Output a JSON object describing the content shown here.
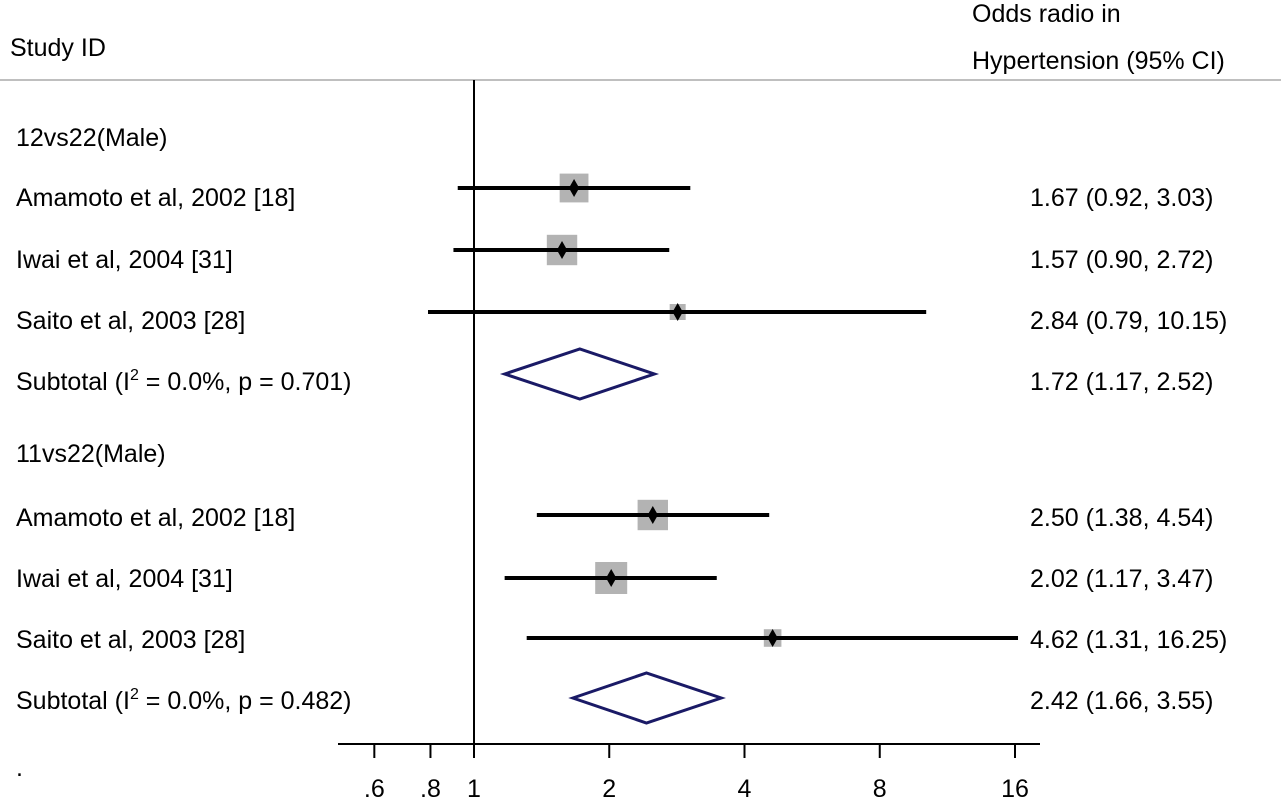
{
  "header": {
    "left_title": "Study ID",
    "right_title_line1": "Odds radio in",
    "right_title_line2": "Hypertension (95% CI)"
  },
  "footnote": ".",
  "chart_data": {
    "type": "forest",
    "x_scale": "log",
    "xlim": [
      0.5,
      18
    ],
    "x_ticks": [
      0.6,
      0.8,
      1,
      2,
      4,
      8,
      16
    ],
    "x_tick_labels": [
      ".6",
      ".8",
      "1",
      "2",
      "4",
      "8",
      "16"
    ],
    "reference_line": 1,
    "groups": [
      {
        "label": "12vs22(Male)",
        "studies": [
          {
            "name": "Amamoto et al, 2002 [18]",
            "or": 1.67,
            "lo": 0.92,
            "hi": 3.03,
            "text": "1.67 (0.92, 3.03)",
            "weight_box": 0.9
          },
          {
            "name": "Iwai et al, 2004 [31]",
            "or": 1.57,
            "lo": 0.9,
            "hi": 2.72,
            "text": "1.57 (0.90, 2.72)",
            "weight_box": 0.95
          },
          {
            "name": "Saito et al, 2003 [28]",
            "or": 2.84,
            "lo": 0.79,
            "hi": 10.15,
            "text": "2.84 (0.79, 10.15)",
            "weight_box": 0.5
          }
        ],
        "subtotal": {
          "label_prefix": "Subtotal  (I",
          "label_sup": "2",
          "label_suffix": " = 0.0%, p = 0.701)",
          "or": 1.72,
          "lo": 1.17,
          "hi": 2.52,
          "text": "1.72 (1.17, 2.52)"
        }
      },
      {
        "label": "11vs22(Male)",
        "studies": [
          {
            "name": "Amamoto et al, 2002 [18]",
            "or": 2.5,
            "lo": 1.38,
            "hi": 4.54,
            "text": "2.50 (1.38, 4.54)",
            "weight_box": 0.95
          },
          {
            "name": "Iwai et al, 2004 [31]",
            "or": 2.02,
            "lo": 1.17,
            "hi": 3.47,
            "text": "2.02 (1.17, 3.47)",
            "weight_box": 1.0
          },
          {
            "name": "Saito et al, 2003 [28]",
            "or": 4.62,
            "lo": 1.31,
            "hi": 16.25,
            "text": "4.62 (1.31, 16.25)",
            "weight_box": 0.55
          }
        ],
        "subtotal": {
          "label_prefix": "Subtotal  (I",
          "label_sup": "2",
          "label_suffix": " = 0.0%, p = 0.482)",
          "or": 2.42,
          "lo": 1.66,
          "hi": 3.55,
          "text": "2.42 (1.66, 3.55)"
        }
      }
    ]
  },
  "colors": {
    "line": "#000000",
    "box": "#b3b3b3",
    "diamond": "#1a1a66",
    "divider": "#bfbfbf"
  }
}
